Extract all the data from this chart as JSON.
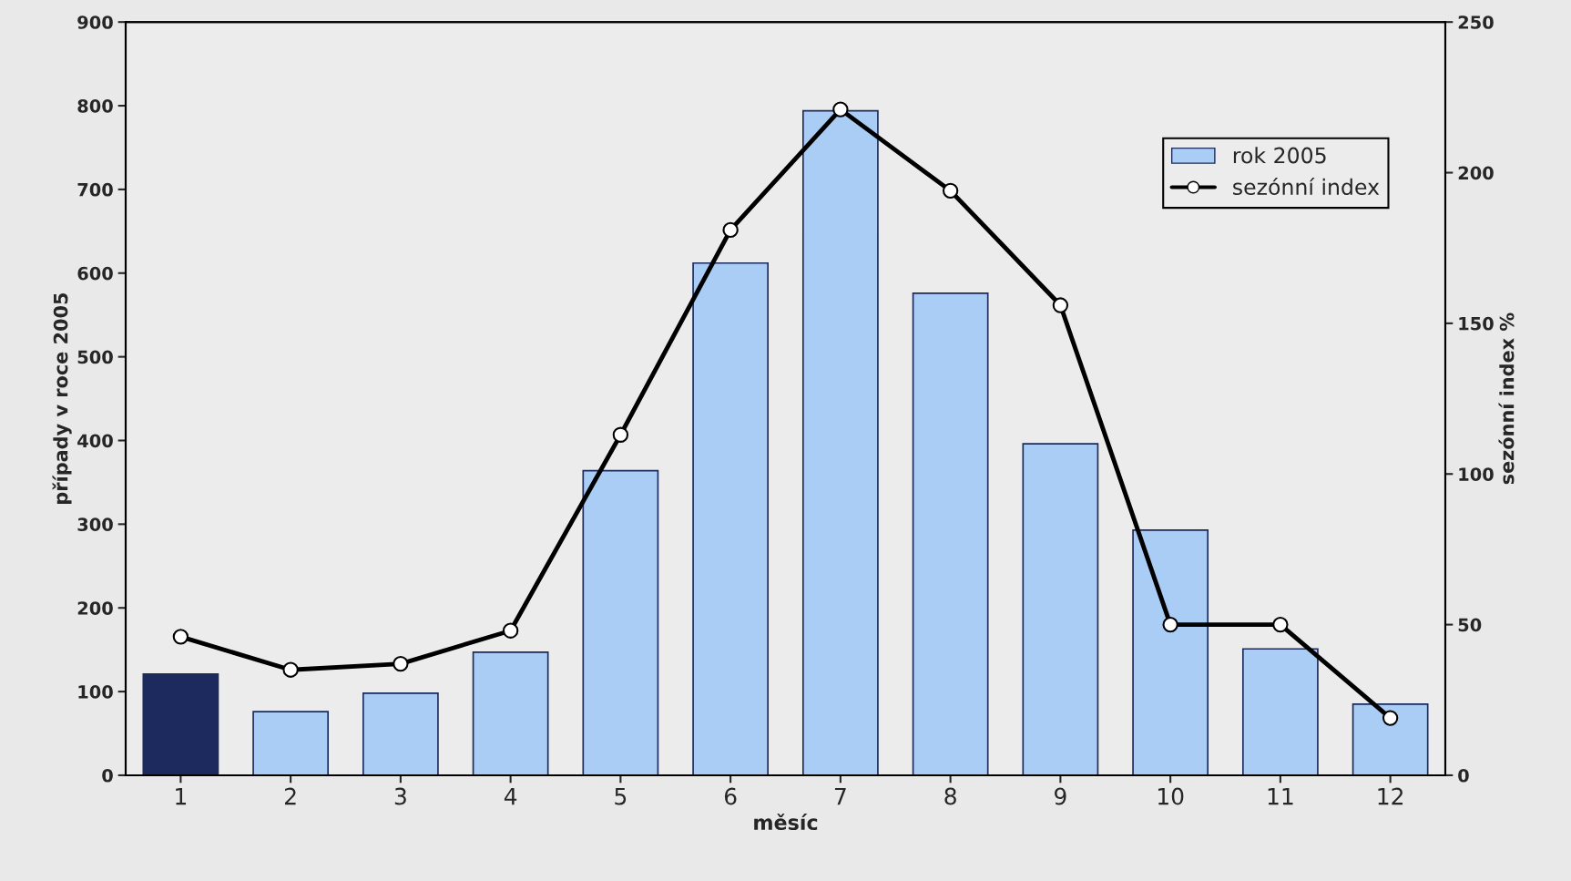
{
  "chart_data": {
    "type": "bar",
    "xlabel": "měsíc",
    "ylabel": "případy v roce 2005",
    "y2label": "sezónní index %",
    "categories": [
      "1",
      "2",
      "3",
      "4",
      "5",
      "6",
      "7",
      "8",
      "9",
      "10",
      "11",
      "12"
    ],
    "series": [
      {
        "name": "rok 2005",
        "color": "#a9cdf5",
        "colors": [
          "#1c2a5e",
          "#a9cdf5",
          "#a9cdf5",
          "#a9cdf5",
          "#a9cdf5",
          "#a9cdf5",
          "#a9cdf5",
          "#a9cdf5",
          "#a9cdf5",
          "#a9cdf5",
          "#a9cdf5",
          "#a9cdf5"
        ],
        "values": [
          121,
          76,
          98,
          147,
          364,
          612,
          794,
          576,
          396,
          293,
          151,
          85
        ]
      },
      {
        "name": "sezónní index",
        "type": "line",
        "axis": "y2",
        "color": "#000000",
        "marker": "circle",
        "values": [
          46,
          35,
          37,
          48,
          113,
          181,
          221,
          194,
          156,
          50,
          50,
          19
        ]
      }
    ],
    "ylim": [
      0,
      900
    ],
    "yticks": [
      0,
      100,
      200,
      300,
      400,
      500,
      600,
      700,
      800,
      900
    ],
    "y2lim": [
      0,
      250
    ],
    "y2ticks": [
      0,
      50,
      100,
      150,
      200,
      250
    ],
    "grid": false,
    "legend": "top right"
  }
}
